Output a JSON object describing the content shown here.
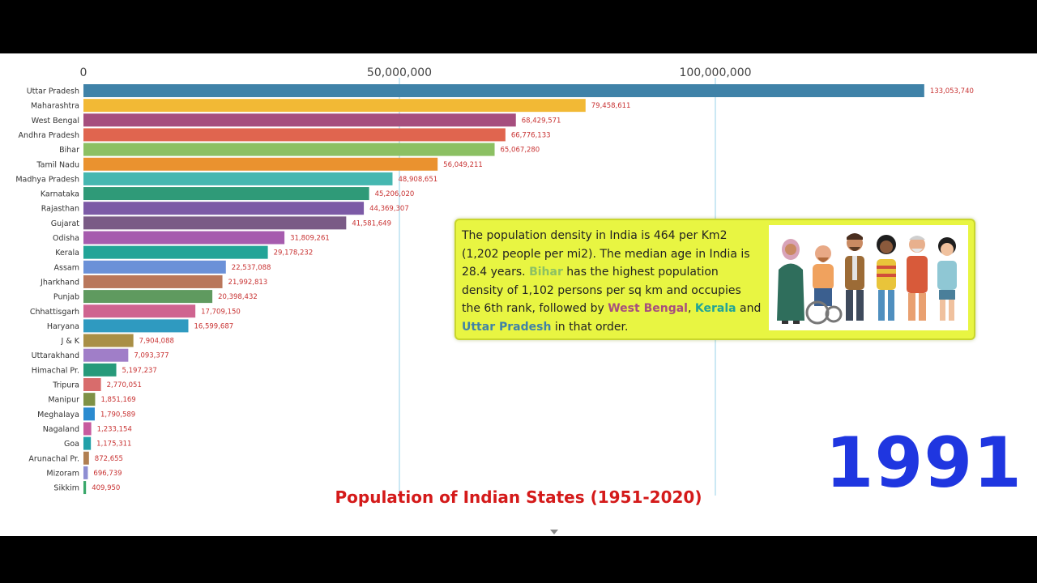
{
  "chart_data": {
    "type": "bar",
    "orientation": "horizontal",
    "title": "Population of Indian States (1951-2020)",
    "year": "1991",
    "xlim": [
      0,
      140000000
    ],
    "ticks": [
      {
        "value": 0,
        "label": "0"
      },
      {
        "value": 50000000,
        "label": "50,000,000"
      },
      {
        "value": 100000000,
        "label": "100,000,000"
      }
    ],
    "bars": [
      {
        "name": "Uttar Pradesh",
        "value": 133053740,
        "label": "133,053,740",
        "color": "#3f82a8"
      },
      {
        "name": "Maharashtra",
        "value": 79458611,
        "label": "79,458,611",
        "color": "#f2b935"
      },
      {
        "name": "West Bengal",
        "value": 68429571,
        "label": "68,429,571",
        "color": "#a64e7e"
      },
      {
        "name": "Andhra Pradesh",
        "value": 66776133,
        "label": "66,776,133",
        "color": "#e0654f"
      },
      {
        "name": "Bihar",
        "value": 65067280,
        "label": "65,067,280",
        "color": "#8cc063"
      },
      {
        "name": "Tamil Nadu",
        "value": 56049211,
        "label": "56,049,211",
        "color": "#ea922f"
      },
      {
        "name": "Madhya Pradesh",
        "value": 48908651,
        "label": "48,908,651",
        "color": "#45b7b0"
      },
      {
        "name": "Karnataka",
        "value": 45206020,
        "label": "45,206,020",
        "color": "#2f9a78"
      },
      {
        "name": "Rajasthan",
        "value": 44369307,
        "label": "44,369,307",
        "color": "#7c5aa6"
      },
      {
        "name": "Gujarat",
        "value": 41581649,
        "label": "41,581,649",
        "color": "#7a5b86"
      },
      {
        "name": "Odisha",
        "value": 31809261,
        "label": "31,809,261",
        "color": "#a65cae"
      },
      {
        "name": "Kerala",
        "value": 29178232,
        "label": "29,178,232",
        "color": "#22a497"
      },
      {
        "name": "Assam",
        "value": 22537088,
        "label": "22,537,088",
        "color": "#6b91d8"
      },
      {
        "name": "Jharkhand",
        "value": 21992813,
        "label": "21,992,813",
        "color": "#b9775b"
      },
      {
        "name": "Punjab",
        "value": 20398432,
        "label": "20,398,432",
        "color": "#5f9a5f"
      },
      {
        "name": "Chhattisgarh",
        "value": 17709150,
        "label": "17,709,150",
        "color": "#cf6490"
      },
      {
        "name": "Haryana",
        "value": 16599687,
        "label": "16,599,687",
        "color": "#2f9ac0"
      },
      {
        "name": "J & K",
        "value": 7904088,
        "label": "7,904,088",
        "color": "#a98f46"
      },
      {
        "name": "Uttarakhand",
        "value": 7093377,
        "label": "7,093,377",
        "color": "#a07ec8"
      },
      {
        "name": "Himachal Pr.",
        "value": 5197237,
        "label": "5,197,237",
        "color": "#279a7a"
      },
      {
        "name": "Tripura",
        "value": 2770051,
        "label": "2,770,051",
        "color": "#d86c6c"
      },
      {
        "name": "Manipur",
        "value": 1851169,
        "label": "1,851,169",
        "color": "#7e9146"
      },
      {
        "name": "Meghalaya",
        "value": 1790589,
        "label": "1,790,589",
        "color": "#2b8bd0"
      },
      {
        "name": "Nagaland",
        "value": 1233154,
        "label": "1,233,154",
        "color": "#c75a9e"
      },
      {
        "name": "Goa",
        "value": 1175311,
        "label": "1,175,311",
        "color": "#22a0a8"
      },
      {
        "name": "Arunachal Pr.",
        "value": 872655,
        "label": "872,655",
        "color": "#b07f52"
      },
      {
        "name": "Mizoram",
        "value": 696739,
        "label": "696,739",
        "color": "#8e8ed2"
      },
      {
        "name": "Sikkim",
        "value": 409950,
        "label": "409,950",
        "color": "#3aa86b"
      }
    ]
  },
  "info": {
    "seg1": "The population density in India is 464 per Km2 (1,202 people per mi2). The median age in India is 28.4 years. ",
    "bihar": "Bihar",
    "seg2": " has the highest population density of 1,102 persons per sq km and occupies the 6th rank, followed by ",
    "west_bengal": "West Bengal",
    "seg3": ", ",
    "kerala": "Kerala",
    "seg4": " and ",
    "uttar_pradesh": "Uttar Pradesh",
    "seg5": " in that order.",
    "colors": {
      "bihar": "#8cc063",
      "west_bengal": "#a64e7e",
      "kerala": "#22a497",
      "uttar_pradesh": "#3f82a8"
    },
    "image_icon": "diverse-people-illustration"
  }
}
